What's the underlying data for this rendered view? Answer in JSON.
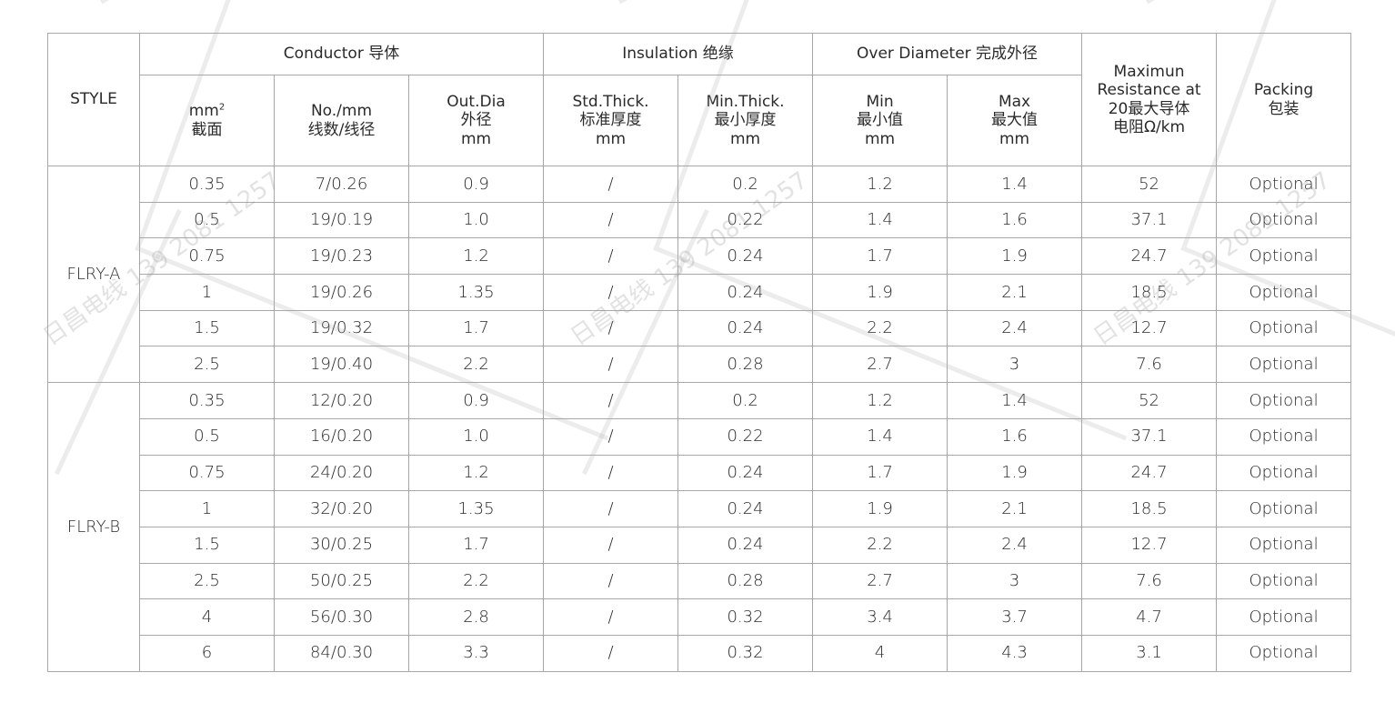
{
  "watermark": "日昌电线 139 2081 1257",
  "header": {
    "style": "STYLE",
    "conductor": "Conductor 导体",
    "insulation": "Insulation 绝缘",
    "over_diameter": "Over Diameter 完成外径",
    "resistance": [
      "Maximun",
      "Resistance at",
      "20最大导体",
      "电阻Ω/km"
    ],
    "packing": [
      "Packing",
      "包装"
    ],
    "sub": {
      "mm2": [
        "mm",
        "截面"
      ],
      "no_mm": [
        "No./mm",
        "线数/线径"
      ],
      "out_dia": [
        "Out.Dia",
        "外径",
        "mm"
      ],
      "std_thick": [
        "Std.Thick.",
        "标准厚度",
        "mm"
      ],
      "min_thick": [
        "Min.Thick.",
        "最小厚度",
        "mm"
      ],
      "min": [
        "Min",
        "最小值",
        "mm"
      ],
      "max": [
        "Max",
        "最大值",
        "mm"
      ]
    }
  },
  "groups": [
    {
      "style": "FLRY-A",
      "rows": [
        [
          "0.35",
          "7/0.26",
          "0.9",
          "/",
          "0.2",
          "1.2",
          "1.4",
          "52",
          "Optional"
        ],
        [
          "0.5",
          "19/0.19",
          "1.0",
          "/",
          "0.22",
          "1.4",
          "1.6",
          "37.1",
          "Optional"
        ],
        [
          "0.75",
          "19/0.23",
          "1.2",
          "/",
          "0.24",
          "1.7",
          "1.9",
          "24.7",
          "Optional"
        ],
        [
          "1",
          "19/0.26",
          "1.35",
          "/",
          "0.24",
          "1.9",
          "2.1",
          "18.5",
          "Optional"
        ],
        [
          "1.5",
          "19/0.32",
          "1.7",
          "/",
          "0.24",
          "2.2",
          "2.4",
          "12.7",
          "Optional"
        ],
        [
          "2.5",
          "19/0.40",
          "2.2",
          "/",
          "0.28",
          "2.7",
          "3",
          "7.6",
          "Optional"
        ]
      ]
    },
    {
      "style": "FLRY-B",
      "rows": [
        [
          "0.35",
          "12/0.20",
          "0.9",
          "/",
          "0.2",
          "1.2",
          "1.4",
          "52",
          "Optional"
        ],
        [
          "0.5",
          "16/0.20",
          "1.0",
          "/",
          "0.22",
          "1.4",
          "1.6",
          "37.1",
          "Optional"
        ],
        [
          "0.75",
          "24/0.20",
          "1.2",
          "/",
          "0.24",
          "1.7",
          "1.9",
          "24.7",
          "Optional"
        ],
        [
          "1",
          "32/0.20",
          "1.35",
          "/",
          "0.24",
          "1.9",
          "2.1",
          "18.5",
          "Optional"
        ],
        [
          "1.5",
          "30/0.25",
          "1.7",
          "/",
          "0.24",
          "2.2",
          "2.4",
          "12.7",
          "Optional"
        ],
        [
          "2.5",
          "50/0.25",
          "2.2",
          "/",
          "0.28",
          "2.7",
          "3",
          "7.6",
          "Optional"
        ],
        [
          "4",
          "56/0.30",
          "2.8",
          "/",
          "0.32",
          "3.4",
          "3.7",
          "4.7",
          "Optional"
        ],
        [
          "6",
          "84/0.30",
          "3.3",
          "/",
          "0.32",
          "4",
          "4.3",
          "3.1",
          "Optional"
        ]
      ]
    }
  ]
}
